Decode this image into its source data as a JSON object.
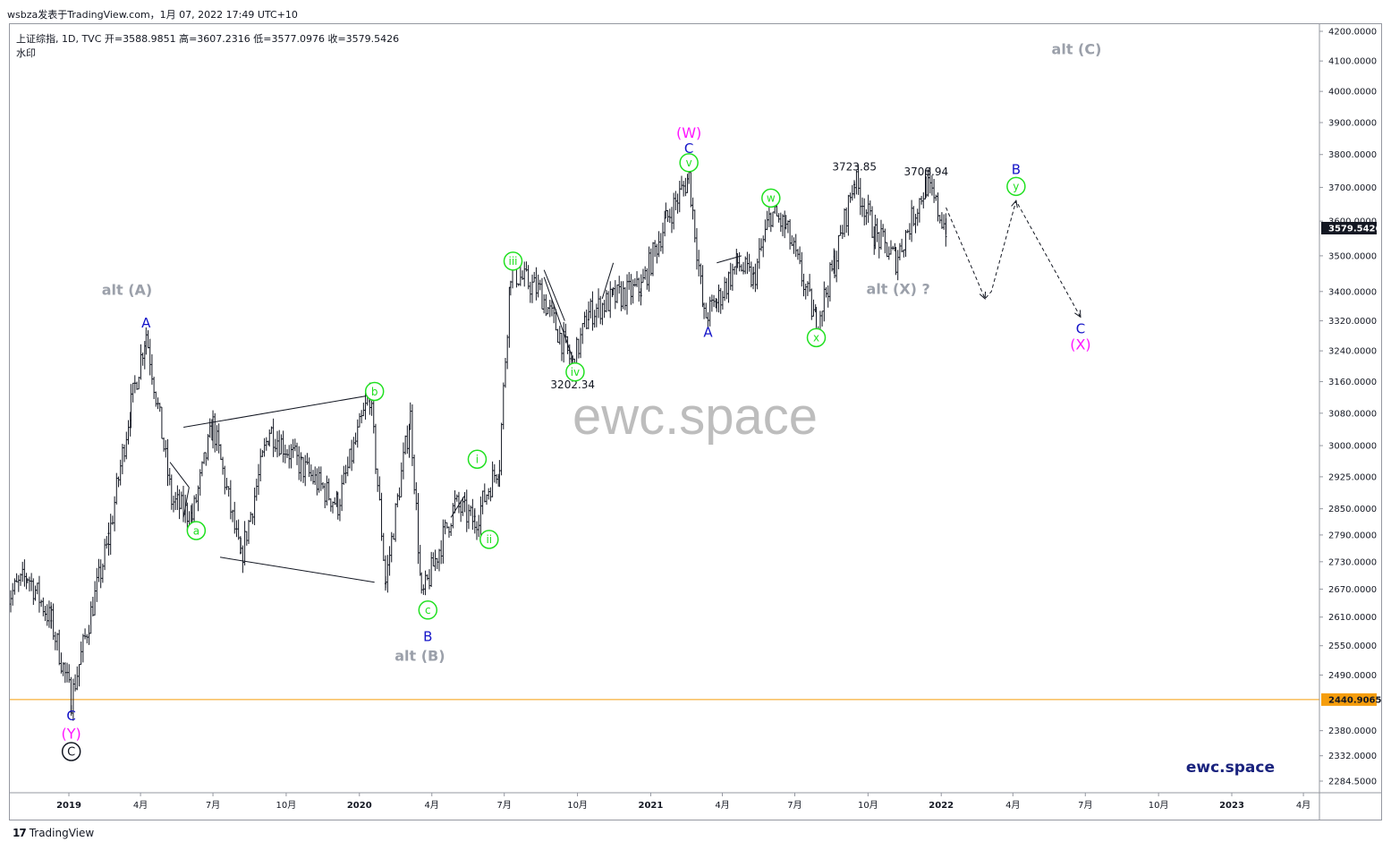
{
  "header": {
    "attribution": "wsbza发表于TradingView.com，1月 07, 2022 17:49 UTC+10"
  },
  "legend": {
    "symbol_line": "上证综指, 1D, TVC  开=3588.9851  高=3607.2316  低=3577.0976  收=3579.5426",
    "watermark_label": "水印"
  },
  "footer": {
    "brand": "TradingView",
    "logo": "17"
  },
  "colors": {
    "candles": "#131722",
    "support_line": "#f59d0c",
    "wave_green": "#20e020",
    "wave_blue": "#1414c8",
    "wave_magenta": "#ff14ff",
    "alt_gray": "#9ba0aa",
    "current_price_bg": "#131722"
  },
  "chart_data": {
    "type": "candlestick",
    "title": "上证综指, 1D, TVC",
    "watermark": "ewc.space",
    "brand_label": "ewc.space",
    "price_axis": {
      "scale": "log",
      "ticks": [
        "4200.0000",
        "4100.0000",
        "4000.0000",
        "3900.0000",
        "3800.0000",
        "3700.0000",
        "3600.0000",
        "3500.0000",
        "3400.0000",
        "3320.0000",
        "3240.0000",
        "3160.0000",
        "3080.0000",
        "3000.0000",
        "2925.0000",
        "2850.0000",
        "2790.0000",
        "2730.0000",
        "2670.0000",
        "2610.0000",
        "2550.0000",
        "2490.0000",
        "2380.0000",
        "2332.0000",
        "2284.5000"
      ],
      "tick_values": [
        4200,
        4100,
        4000,
        3900,
        3800,
        3700,
        3600,
        3500,
        3400,
        3320,
        3240,
        3160,
        3080,
        3000,
        2925,
        2850,
        2790,
        2730,
        2670,
        2610,
        2550,
        2490,
        2380,
        2332,
        2284.5
      ],
      "current_price": {
        "label": "3579.5426",
        "value": 3579.5426
      },
      "support_price": {
        "label": "2440.9065",
        "value": 2440.9065
      }
    },
    "time_axis": {
      "ticks": [
        "2019",
        "4月",
        "7月",
        "10月",
        "2020",
        "4月",
        "7月",
        "10月",
        "2021",
        "4月",
        "7月",
        "10月",
        "2022",
        "4月",
        "7月",
        "10月",
        "2023",
        "4月"
      ],
      "tick_dates": [
        "2019-01",
        "2019-04",
        "2019-07",
        "2019-10",
        "2020-01",
        "2020-04",
        "2020-07",
        "2020-10",
        "2021-01",
        "2021-04",
        "2021-07",
        "2021-10",
        "2022-01",
        "2022-04",
        "2022-07",
        "2022-10",
        "2023-01",
        "2023-04"
      ],
      "major": [
        true,
        false,
        false,
        false,
        true,
        false,
        false,
        false,
        true,
        false,
        false,
        false,
        true,
        false,
        false,
        false,
        true,
        false
      ]
    },
    "anchors": [
      {
        "date": "2018-10-15",
        "value": 2650
      },
      {
        "date": "2018-11-10",
        "value": 2700
      },
      {
        "date": "2018-12-10",
        "value": 2600
      },
      {
        "date": "2019-01-04",
        "value": 2440.9
      },
      {
        "date": "2019-02-20",
        "value": 2780
      },
      {
        "date": "2019-03-20",
        "value": 3100
      },
      {
        "date": "2019-04-08",
        "value": 3288
      },
      {
        "date": "2019-05-10",
        "value": 2870
      },
      {
        "date": "2019-06-05",
        "value": 2830
      },
      {
        "date": "2019-07-01",
        "value": 3050
      },
      {
        "date": "2019-08-05",
        "value": 2733
      },
      {
        "date": "2019-09-10",
        "value": 3040
      },
      {
        "date": "2019-10-20",
        "value": 2950
      },
      {
        "date": "2019-12-05",
        "value": 2860
      },
      {
        "date": "2020-01-14",
        "value": 3127
      },
      {
        "date": "2020-02-03",
        "value": 2685
      },
      {
        "date": "2020-03-05",
        "value": 3071
      },
      {
        "date": "2020-03-19",
        "value": 2646
      },
      {
        "date": "2020-04-30",
        "value": 2860
      },
      {
        "date": "2020-05-25",
        "value": 2820
      },
      {
        "date": "2020-06-25",
        "value": 2960
      },
      {
        "date": "2020-07-09",
        "value": 3458
      },
      {
        "date": "2020-08-15",
        "value": 3400
      },
      {
        "date": "2020-09-25",
        "value": 3202.34
      },
      {
        "date": "2020-10-15",
        "value": 3340
      },
      {
        "date": "2020-11-15",
        "value": 3380
      },
      {
        "date": "2020-12-20",
        "value": 3410
      },
      {
        "date": "2021-01-20",
        "value": 3600
      },
      {
        "date": "2021-02-18",
        "value": 3731.69
      },
      {
        "date": "2021-03-09",
        "value": 3328
      },
      {
        "date": "2021-03-25",
        "value": 3370
      },
      {
        "date": "2021-04-20",
        "value": 3480
      },
      {
        "date": "2021-05-10",
        "value": 3430
      },
      {
        "date": "2021-06-01",
        "value": 3625
      },
      {
        "date": "2021-06-20",
        "value": 3580
      },
      {
        "date": "2021-07-28",
        "value": 3312
      },
      {
        "date": "2021-08-20",
        "value": 3480
      },
      {
        "date": "2021-09-14",
        "value": 3723.85
      },
      {
        "date": "2021-10-10",
        "value": 3560
      },
      {
        "date": "2021-11-05",
        "value": 3490
      },
      {
        "date": "2021-12-13",
        "value": 3708.94
      },
      {
        "date": "2022-01-07",
        "value": 3579.54
      }
    ],
    "price_labels": [
      {
        "text": "3202.34",
        "date": "2020-09-25",
        "value": 3202.34
      },
      {
        "text": "3723.85",
        "date": "2021-09-14",
        "value": 3723.85
      },
      {
        "text": "3708.94",
        "date": "2021-12-13",
        "value": 3708.94
      }
    ],
    "projection": [
      {
        "date": "2022-01-07",
        "value": 3640
      },
      {
        "date": "2022-02-25",
        "value": 3380
      },
      {
        "date": "2022-03-05",
        "value": 3400
      },
      {
        "date": "2022-04-05",
        "value": 3660
      },
      {
        "date": "2022-06-25",
        "value": 3330
      }
    ],
    "trendlines": [
      {
        "from": {
          "date": "2019-05-25",
          "value": 3045
        },
        "to": {
          "date": "2020-01-20",
          "value": 3127
        }
      },
      {
        "from": {
          "date": "2019-07-10",
          "value": 2740
        },
        "to": {
          "date": "2020-01-20",
          "value": 2685
        }
      },
      {
        "from": {
          "date": "2019-05-08",
          "value": 2960
        },
        "to": {
          "date": "2019-06-01",
          "value": 2900
        }
      },
      {
        "from": {
          "date": "2019-06-01",
          "value": 2900
        },
        "to": {
          "date": "2019-05-25",
          "value": 2830
        }
      },
      {
        "from": {
          "date": "2020-08-20",
          "value": 3460
        },
        "to": {
          "date": "2020-09-15",
          "value": 3320
        }
      },
      {
        "from": {
          "date": "2020-08-20",
          "value": 3440
        },
        "to": {
          "date": "2020-09-25",
          "value": 3220
        }
      },
      {
        "from": {
          "date": "2020-04-25",
          "value": 2830
        },
        "to": {
          "date": "2020-05-12",
          "value": 2880
        }
      },
      {
        "from": {
          "date": "2020-11-01",
          "value": 3380
        },
        "to": {
          "date": "2020-11-15",
          "value": 3480
        }
      },
      {
        "from": {
          "date": "2021-03-25",
          "value": 3480
        },
        "to": {
          "date": "2021-04-25",
          "value": 3500
        }
      }
    ],
    "wave_labels": [
      {
        "text": "alt (A)",
        "style": "alt",
        "date": "2019-03-15",
        "value": 3405
      },
      {
        "text": "A",
        "style": "blue",
        "date": "2019-04-08",
        "value": 3315
      },
      {
        "text": "a",
        "style": "green-circle",
        "date": "2019-06-10",
        "value": 2800
      },
      {
        "text": "b",
        "style": "green-circle",
        "date": "2020-01-20",
        "value": 3135
      },
      {
        "text": "c",
        "style": "green-circle",
        "date": "2020-03-27",
        "value": 2625
      },
      {
        "text": "B",
        "style": "blue",
        "date": "2020-03-27",
        "value": 2570
      },
      {
        "text": "alt (B)",
        "style": "alt",
        "date": "2020-03-17",
        "value": 2530
      },
      {
        "text": "C",
        "style": "blue",
        "date": "2019-01-04",
        "value": 2410
      },
      {
        "text": "(Y)",
        "style": "magenta",
        "date": "2019-01-04",
        "value": 2375
      },
      {
        "text": "C",
        "style": "black-circle",
        "date": "2019-01-04",
        "value": 2340
      },
      {
        "text": "i",
        "style": "green-circle",
        "date": "2020-05-28",
        "value": 2967
      },
      {
        "text": "ii",
        "style": "green-circle",
        "date": "2020-06-12",
        "value": 2780
      },
      {
        "text": "iii",
        "style": "green-circle",
        "date": "2020-07-12",
        "value": 3485
      },
      {
        "text": "iv",
        "style": "green-circle",
        "date": "2020-09-28",
        "value": 3185
      },
      {
        "text": "v",
        "style": "green-circle",
        "date": "2021-02-18",
        "value": 3775
      },
      {
        "text": "C",
        "style": "blue",
        "date": "2021-02-18",
        "value": 3820
      },
      {
        "text": "(W)",
        "style": "magenta",
        "date": "2021-02-18",
        "value": 3868
      },
      {
        "text": "A",
        "style": "blue",
        "date": "2021-03-14",
        "value": 3290
      },
      {
        "text": "w",
        "style": "green-circle",
        "date": "2021-06-01",
        "value": 3668
      },
      {
        "text": "x",
        "style": "green-circle",
        "date": "2021-07-28",
        "value": 3275
      },
      {
        "text": "alt (X) ?",
        "style": "alt",
        "date": "2021-11-08",
        "value": 3408
      },
      {
        "text": "B",
        "style": "blue",
        "date": "2022-04-05",
        "value": 3755
      },
      {
        "text": "y",
        "style": "green-circle",
        "date": "2022-04-05",
        "value": 3703
      },
      {
        "text": "C",
        "style": "blue",
        "date": "2022-06-25",
        "value": 3300
      },
      {
        "text": "(X)",
        "style": "magenta",
        "date": "2022-06-25",
        "value": 3258
      },
      {
        "text": "alt (C)",
        "style": "alt",
        "date": "2022-06-20",
        "value": 4140
      }
    ]
  }
}
